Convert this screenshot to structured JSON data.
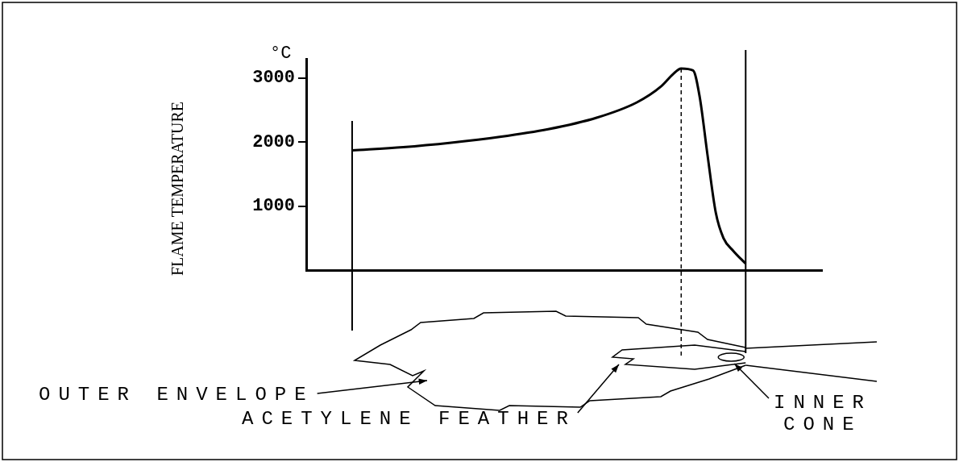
{
  "chart_data": {
    "type": "line",
    "ylabel": "FLAME TEMPERATURE",
    "y_unit": "°C",
    "x": [
      8.9,
      18.8,
      28.1,
      37.5,
      46.9,
      56.3,
      64.1,
      68.8,
      71.1,
      72.7,
      75.0,
      76.3,
      77.8,
      79.4,
      80.9,
      82.8,
      85.2
    ],
    "values": [
      1870,
      1920,
      1990,
      2080,
      2200,
      2380,
      2620,
      2870,
      3060,
      3150,
      3120,
      2700,
      1800,
      900,
      500,
      300,
      100
    ],
    "color": "#000000",
    "xlim": [
      0,
      100
    ],
    "ylim": [
      0,
      3300
    ],
    "yticks": [
      1000,
      2000,
      3000
    ],
    "grid": false,
    "tick_labels": "y",
    "annotations": [
      "OUTER ENVELOPE",
      "ACETYLENE FEATHER",
      "INNER CONE"
    ]
  }
}
